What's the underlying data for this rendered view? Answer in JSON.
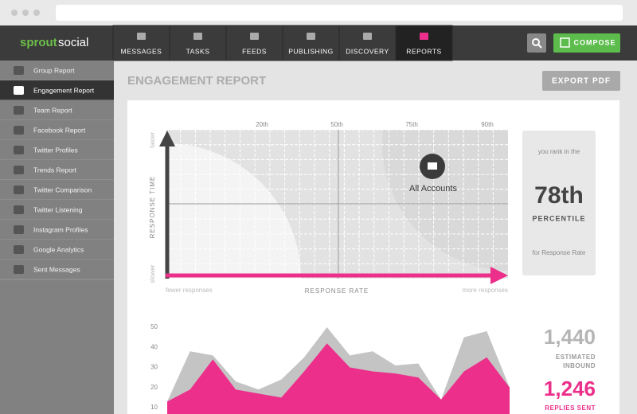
{
  "nav": {
    "logo": [
      "sprout",
      "social"
    ],
    "items": [
      "MESSAGES",
      "TASKS",
      "FEEDS",
      "PUBLISHING",
      "DISCOVERY",
      "REPORTS"
    ],
    "active": 5,
    "compose": "COMPOSE"
  },
  "sidebar": {
    "items": [
      "Group Report",
      "Engagement Report",
      "Team Report",
      "Facebook Report",
      "Twitter Profiles",
      "Trends Report",
      "Twitter Comparison",
      "Twitter Listening",
      "Instagram Profiles",
      "Google Analytics",
      "Sent Messages"
    ],
    "active": 1
  },
  "page": {
    "title": "ENGAGEMENT REPORT",
    "export": "EXPORT PDF"
  },
  "quadrant": {
    "percentiles": [
      "20th",
      "50th",
      "75th",
      "90th"
    ],
    "y_top": "faster",
    "y_bottom": "slower",
    "y_label": "RESPONSE TIME",
    "x_left": "fewer responses",
    "x_label": "RESPONSE RATE",
    "x_right": "more responses",
    "point_label": "All Accounts"
  },
  "rank": {
    "intro": "you rank in the",
    "value": "78th",
    "unit": "PERCENTILE",
    "note": "for Response Rate"
  },
  "chart_data": {
    "type": "area",
    "categories": [
      null,
      null,
      null,
      null,
      null,
      null,
      null,
      null,
      null,
      null,
      null,
      null,
      null,
      null,
      null,
      null
    ],
    "series": [
      {
        "color": "#c4c4c4",
        "values": [
          13,
          38,
          36,
          23,
          19,
          24,
          35,
          50,
          36,
          38,
          31,
          32,
          14,
          45,
          48,
          20
        ]
      },
      {
        "color": "#ec2f8a",
        "values": [
          13,
          19,
          34,
          19,
          17,
          15,
          28,
          42,
          30,
          28,
          27,
          25,
          14,
          28,
          35,
          20
        ]
      }
    ],
    "ylim": [
      10,
      50
    ],
    "yticks": [
      10,
      20,
      30,
      40,
      50
    ]
  },
  "stats": [
    {
      "value": "1,440",
      "label": "ESTIMATED INBOUND",
      "color": "#b5b5b5"
    },
    {
      "value": "1,246",
      "label": "REPLIES SENT",
      "color": "#ec2f8a"
    }
  ]
}
